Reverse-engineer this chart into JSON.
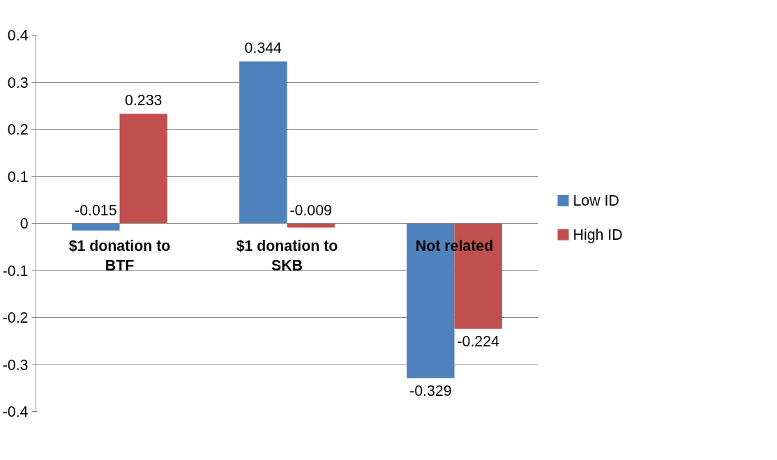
{
  "chart_data": {
    "type": "bar",
    "categories": [
      "$1 donation to BTF",
      "$1 donation to SKB",
      "Not related"
    ],
    "series": [
      {
        "name": "Low ID",
        "color": "#4f81bd",
        "values": [
          -0.015,
          0.344,
          -0.329
        ]
      },
      {
        "name": "High ID",
        "color": "#c0504d",
        "values": [
          0.233,
          -0.009,
          -0.224
        ]
      }
    ],
    "ylim": [
      -0.4,
      0.4
    ],
    "yticks": [
      {
        "value": -0.4,
        "label": "-0.4"
      },
      {
        "value": -0.3,
        "label": "-0.3"
      },
      {
        "value": -0.2,
        "label": "-0.2"
      },
      {
        "value": -0.1,
        "label": "-0.1"
      },
      {
        "value": 0,
        "label": "0"
      },
      {
        "value": 0.1,
        "label": "0.1"
      },
      {
        "value": 0.2,
        "label": "0.2"
      },
      {
        "value": 0.3,
        "label": "0.3"
      },
      {
        "value": 0.4,
        "label": "0.4"
      }
    ],
    "grid": "y",
    "legend": "right",
    "data_labels": true
  }
}
